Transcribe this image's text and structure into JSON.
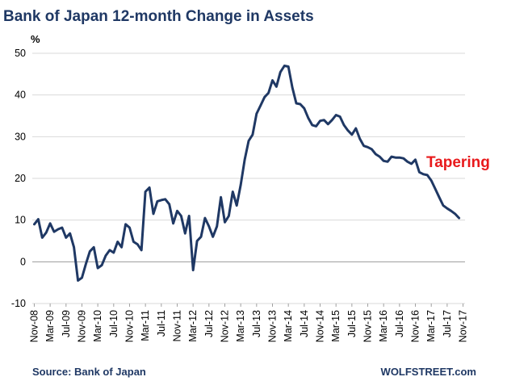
{
  "chart_data": {
    "type": "line",
    "title": "Bank of Japan 12-month Change in Assets",
    "ylabel": "%",
    "ylim": [
      -10,
      50
    ],
    "yticks": [
      -10,
      0,
      10,
      20,
      30,
      40,
      50
    ],
    "grid": "horizontal",
    "xtick_labels": [
      "Nov-08",
      "Mar-09",
      "Jul-09",
      "Nov-09",
      "Mar-10",
      "Jul-10",
      "Nov-10",
      "Mar-11",
      "Jul-11",
      "Nov-11",
      "Mar-12",
      "Jul-12",
      "Nov-12",
      "Mar-13",
      "Jul-13",
      "Nov-13",
      "Mar-14",
      "Jul-14",
      "Nov-14",
      "Mar-15",
      "Jul-15",
      "Nov-15",
      "Mar-16",
      "Jul-16",
      "Nov-16",
      "Mar-17",
      "Jul-17",
      "Nov-17"
    ],
    "x_start": "Nov-08",
    "frequency": "monthly",
    "series": [
      {
        "color": "#1f3864",
        "values": [
          9.0,
          10.2,
          5.8,
          7.0,
          9.2,
          7.2,
          7.8,
          8.2,
          5.8,
          6.8,
          3.5,
          -4.5,
          -3.8,
          -0.5,
          2.5,
          3.5,
          -1.5,
          -0.8,
          1.5,
          2.8,
          2.2,
          4.8,
          3.5,
          9.0,
          8.2,
          4.8,
          4.2,
          2.8,
          16.8,
          17.8,
          11.5,
          14.5,
          14.8,
          15.0,
          13.8,
          9.2,
          12.2,
          11.0,
          6.8,
          11.0,
          -2.0,
          5.0,
          6.0,
          10.5,
          8.5,
          6.0,
          8.5,
          15.5,
          9.5,
          11.0,
          16.8,
          13.5,
          18.5,
          24.5,
          29.0,
          30.5,
          35.5,
          37.5,
          39.5,
          40.5,
          43.5,
          42.0,
          45.5,
          47.0,
          46.8,
          41.8,
          38.0,
          37.8,
          36.8,
          34.5,
          32.8,
          32.5,
          33.8,
          34.0,
          33.0,
          34.0,
          35.2,
          34.8,
          32.8,
          31.5,
          30.5,
          32.0,
          29.5,
          27.8,
          27.5,
          27.0,
          25.8,
          25.2,
          24.2,
          24.0,
          25.2,
          25.0,
          25.0,
          24.8,
          24.0,
          23.5,
          24.5,
          21.5,
          21.0,
          20.8,
          19.5,
          17.5,
          15.5,
          13.5,
          12.8,
          12.2,
          11.5,
          10.5
        ]
      }
    ],
    "annotation": "Tapering"
  },
  "source": "Source: Bank of Japan",
  "credit": "WOLFSTREET.com"
}
